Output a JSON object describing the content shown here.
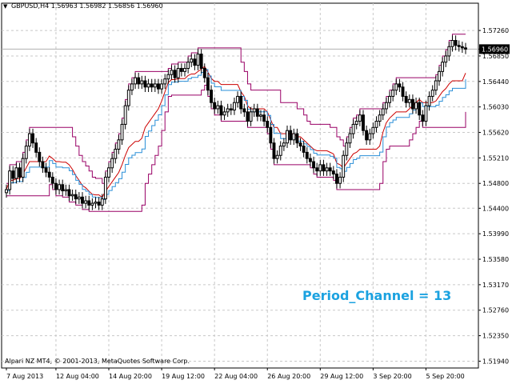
{
  "header": {
    "symbol": "GBPUSD,H4",
    "ohlc": "1.56963 1.56982 1.56856 1.56960"
  },
  "footer": {
    "copyright": "Alpari NZ MT4, © 2001-2013, MetaQuotes Software Corp."
  },
  "annotation": {
    "text": "Period_Channel = 13",
    "color": "#1ba2e0"
  },
  "colors": {
    "background": "#ffffff",
    "grid": "#c8c8c8",
    "candle": "#000000",
    "channel": "#990066",
    "middle": "#cc0000",
    "trail": "#2a8fd8",
    "price_label_bg": "#000000",
    "price_label_text": "#ffffff"
  },
  "chart_data": {
    "type": "candlestick",
    "title": "GBPUSD,H4",
    "xlabel": "",
    "ylabel": "",
    "ylim": [
      1.5183,
      1.5757
    ],
    "grid": true,
    "price_ticks": [
      "1.57260",
      "1.56960",
      "1.56850",
      "1.56440",
      "1.56030",
      "1.55620",
      "1.55210",
      "1.54800",
      "1.54400",
      "1.53990",
      "1.53580",
      "1.53170",
      "1.52760",
      "1.52350",
      "1.51940"
    ],
    "current_price": "1.56960",
    "date_ticks": [
      "7 Aug 2013",
      "12 Aug 04:00",
      "14 Aug 20:00",
      "19 Aug 12:00",
      "22 Aug 04:00",
      "26 Aug 20:00",
      "29 Aug 12:00",
      "3 Sep 20:00",
      "5 Sep 20:00"
    ],
    "date_tick_index": [
      0,
      15,
      31,
      47,
      63,
      79,
      95,
      111,
      127
    ],
    "bars": 140,
    "close": [
      1.547,
      1.55,
      1.5488,
      1.5505,
      1.549,
      1.552,
      1.554,
      1.556,
      1.5545,
      1.553,
      1.5515,
      1.5505,
      1.5498,
      1.549,
      1.548,
      1.547,
      1.5478,
      1.5468,
      1.547,
      1.546,
      1.5462,
      1.5455,
      1.5458,
      1.5448,
      1.5452,
      1.5445,
      1.5448,
      1.545,
      1.5445,
      1.5455,
      1.549,
      1.5505,
      1.552,
      1.5535,
      1.555,
      1.5575,
      1.5605,
      1.563,
      1.564,
      1.565,
      1.564,
      1.5645,
      1.5635,
      1.564,
      1.5635,
      1.564,
      1.5632,
      1.564,
      1.5648,
      1.5655,
      1.5662,
      1.565,
      1.5665,
      1.566,
      1.5665,
      1.5675,
      1.568,
      1.567,
      1.5688,
      1.5665,
      1.565,
      1.563,
      1.561,
      1.56,
      1.5605,
      1.559,
      1.5595,
      1.56,
      1.5598,
      1.561,
      1.562,
      1.56,
      1.5595,
      1.558,
      1.5595,
      1.56,
      1.5588,
      1.559,
      1.558,
      1.557,
      1.5545,
      1.552,
      1.5525,
      1.554,
      1.5545,
      1.5565,
      1.555,
      1.556,
      1.5545,
      1.554,
      1.553,
      1.552,
      1.5515,
      1.5505,
      1.55,
      1.551,
      1.55,
      1.5505,
      1.55,
      1.5495,
      1.548,
      1.549,
      1.5525,
      1.5545,
      1.556,
      1.5575,
      1.558,
      1.559,
      1.5565,
      1.555,
      1.556,
      1.557,
      1.558,
      1.559,
      1.56,
      1.561,
      1.562,
      1.563,
      1.564,
      1.5635,
      1.562,
      1.561,
      1.5615,
      1.56,
      1.561,
      1.559,
      1.558,
      1.5605,
      1.562,
      1.563,
      1.5645,
      1.566,
      1.5675,
      1.5685,
      1.57,
      1.571,
      1.5702,
      1.57,
      1.5698,
      1.5696
    ]
  }
}
